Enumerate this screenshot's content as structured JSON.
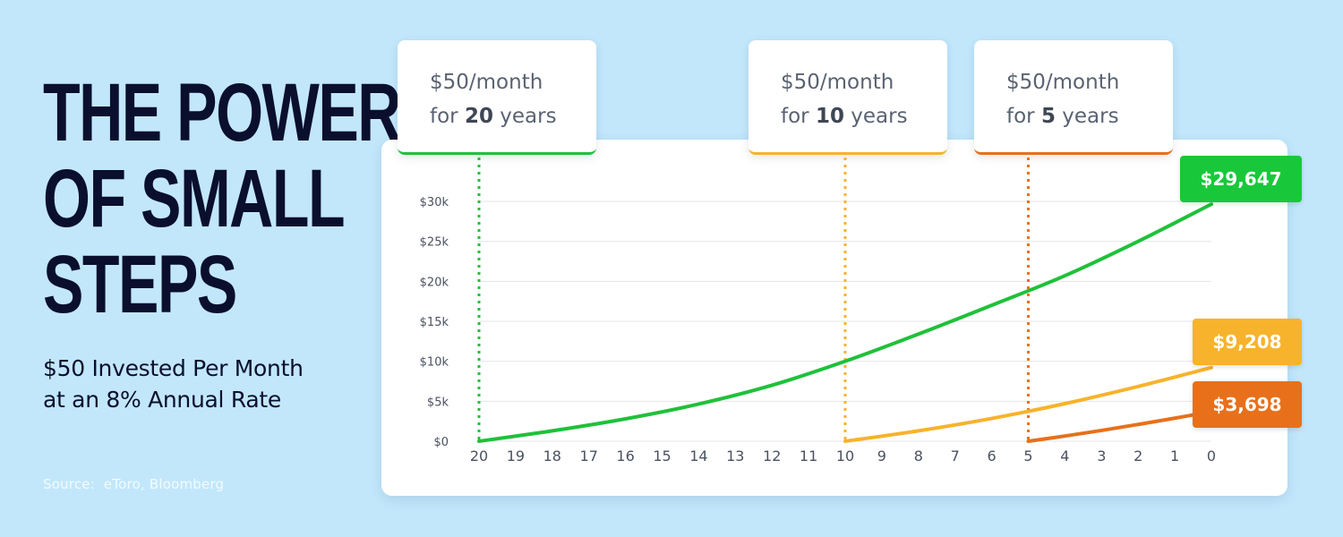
{
  "headline": [
    "THE POWER",
    "OF SMALL",
    "STEPS"
  ],
  "subtitle": [
    "$50 Invested Per Month",
    "at an 8% Annual Rate"
  ],
  "source": "Source:  eToro, Bloomberg",
  "callouts": [
    {
      "line1": "$50/month",
      "prefix": "for ",
      "years": "20",
      "suffix": " years",
      "color": "#1fc13a"
    },
    {
      "line1": "$50/month",
      "prefix": "for ",
      "years": "10",
      "suffix": " years",
      "color": "#f7b32b"
    },
    {
      "line1": "$50/month",
      "prefix": "for ",
      "years": "5",
      "suffix": " years",
      "color": "#e8701a"
    }
  ],
  "chart_data": {
    "type": "line",
    "x_ticks": [
      20,
      19,
      18,
      17,
      16,
      15,
      14,
      13,
      12,
      11,
      10,
      9,
      8,
      7,
      6,
      5,
      4,
      3,
      2,
      1,
      0
    ],
    "y_ticks": [
      {
        "value": 0,
        "label": "$0"
      },
      {
        "value": 5000,
        "label": "$5k"
      },
      {
        "value": 10000,
        "label": "$10k"
      },
      {
        "value": 15000,
        "label": "$15k"
      },
      {
        "value": 20000,
        "label": "$20k"
      },
      {
        "value": 25000,
        "label": "$25k"
      },
      {
        "value": 30000,
        "label": "$30k"
      }
    ],
    "xlim": [
      20,
      0
    ],
    "ylim": [
      0,
      30000
    ],
    "grid": true,
    "series": [
      {
        "key": "g20",
        "color": "#1fc13a",
        "start_year": 20,
        "end_label": "$29,647",
        "end_value": 29647,
        "x": [
          20,
          18,
          16,
          14,
          12,
          10,
          8,
          6,
          4,
          2,
          0
        ],
        "y": [
          0,
          1300,
          2800,
          4650,
          7000,
          10000,
          13400,
          17000,
          20700,
          25000,
          29647
        ]
      },
      {
        "key": "o10",
        "color": "#f7b32b",
        "start_year": 10,
        "end_label": "$9,208",
        "end_value": 9208,
        "x": [
          10,
          8,
          6,
          4,
          2,
          0
        ],
        "y": [
          0,
          1300,
          2850,
          4700,
          6850,
          9208
        ]
      },
      {
        "key": "r5",
        "color": "#e8701a",
        "start_year": 5,
        "end_label": "$3,698",
        "end_value": 3698,
        "x": [
          5,
          4,
          3,
          2,
          1,
          0
        ],
        "y": [
          0,
          650,
          1350,
          2100,
          2880,
          3698
        ]
      }
    ]
  }
}
